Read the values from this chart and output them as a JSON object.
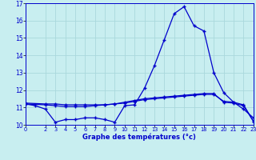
{
  "title": "Graphe des températures (°c)",
  "background_color": "#c8eef0",
  "grid_color": "#aad8dc",
  "line_color": "#0000cc",
  "xlim": [
    0,
    23
  ],
  "ylim": [
    10,
    17
  ],
  "yticks": [
    10,
    11,
    12,
    13,
    14,
    15,
    16,
    17
  ],
  "xticks": [
    0,
    2,
    3,
    4,
    5,
    6,
    7,
    8,
    9,
    10,
    11,
    12,
    13,
    14,
    15,
    16,
    17,
    18,
    19,
    20,
    21,
    22,
    23
  ],
  "series1_x": [
    0,
    1,
    2,
    3,
    4,
    5,
    6,
    7,
    8,
    9,
    10,
    11,
    12,
    13,
    14,
    15,
    16,
    17,
    18,
    19,
    20,
    21,
    22,
    23
  ],
  "series1_y": [
    11.2,
    11.1,
    10.9,
    10.15,
    10.3,
    10.3,
    10.4,
    10.4,
    10.3,
    10.15,
    11.1,
    11.15,
    12.1,
    13.4,
    14.9,
    16.4,
    16.8,
    15.7,
    15.4,
    13.0,
    11.85,
    11.3,
    10.9,
    10.4
  ],
  "series2_x": [
    0,
    2,
    3,
    4,
    5,
    6,
    7,
    8,
    9,
    10,
    11,
    12,
    13,
    14,
    15,
    16,
    17,
    18,
    19,
    20,
    21,
    22,
    23
  ],
  "series2_y": [
    11.2,
    11.15,
    11.1,
    11.05,
    11.05,
    11.05,
    11.1,
    11.15,
    11.2,
    11.3,
    11.4,
    11.5,
    11.55,
    11.6,
    11.65,
    11.7,
    11.75,
    11.8,
    11.8,
    11.3,
    11.25,
    11.1,
    10.2
  ],
  "series3_x": [
    0,
    2,
    3,
    4,
    5,
    6,
    7,
    8,
    9,
    10,
    11,
    12,
    13,
    14,
    15,
    16,
    17,
    18,
    19,
    20,
    21,
    22,
    23
  ],
  "series3_y": [
    11.25,
    11.2,
    11.2,
    11.15,
    11.15,
    11.15,
    11.15,
    11.15,
    11.2,
    11.25,
    11.35,
    11.45,
    11.5,
    11.55,
    11.6,
    11.65,
    11.7,
    11.75,
    11.75,
    11.35,
    11.3,
    11.15,
    10.2
  ]
}
